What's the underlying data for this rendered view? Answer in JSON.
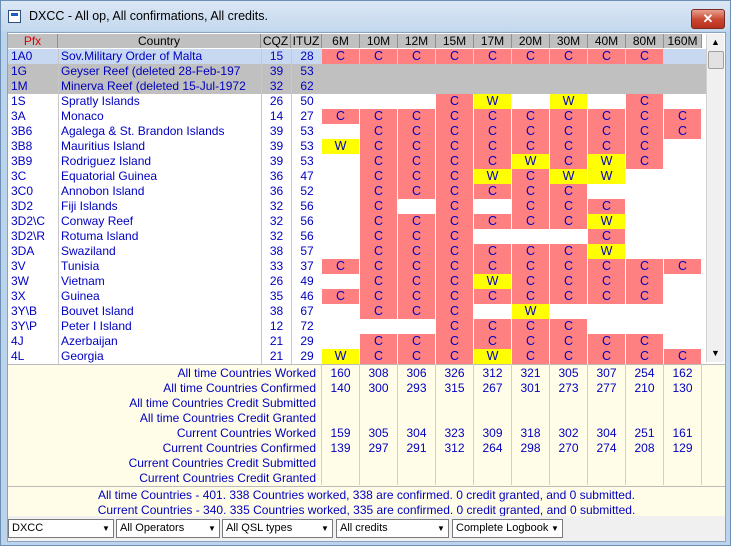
{
  "window": {
    "title": "DXCC - All op, All confirmations, All credits."
  },
  "columns": {
    "pfx": "Pfx",
    "country": "Country",
    "cqz": "CQZ",
    "ituz": "ITUZ",
    "bands": [
      "6M",
      "10M",
      "12M",
      "15M",
      "17M",
      "20M",
      "30M",
      "40M",
      "80M",
      "160M"
    ]
  },
  "colors": {
    "C": "#ff8080",
    "W": "#ffff00",
    "deleted_row": "#c0c0c0",
    "selected_row": "#c8d8f0",
    "text": "#0000c0"
  },
  "rows": [
    {
      "pfx": "1A0",
      "country": "Sov.Military Order of Malta",
      "cqz": "15",
      "ituz": "28",
      "bands": [
        "C",
        "C",
        "C",
        "C",
        "C",
        "C",
        "C",
        "C",
        "C",
        ""
      ],
      "style": "sel"
    },
    {
      "pfx": "1G",
      "country": "Geyser Reef  (deleted 28-Feb-197",
      "cqz": "39",
      "ituz": "53",
      "bands": [
        "",
        "",
        "",
        "",
        "",
        "",
        "",
        "",
        "",
        ""
      ],
      "style": "del"
    },
    {
      "pfx": "1M",
      "country": "Minerva Reef  (deleted 15-Jul-1972",
      "cqz": "32",
      "ituz": "62",
      "bands": [
        "",
        "",
        "",
        "",
        "",
        "",
        "",
        "",
        "",
        ""
      ],
      "style": "del"
    },
    {
      "pfx": "1S",
      "country": "Spratly Islands",
      "cqz": "26",
      "ituz": "50",
      "bands": [
        "",
        "",
        "",
        "C",
        "W",
        "",
        "W",
        "",
        "C",
        ""
      ]
    },
    {
      "pfx": "3A",
      "country": "Monaco",
      "cqz": "14",
      "ituz": "27",
      "bands": [
        "C",
        "C",
        "C",
        "C",
        "C",
        "C",
        "C",
        "C",
        "C",
        "C"
      ]
    },
    {
      "pfx": "3B6",
      "country": "Agalega & St. Brandon Islands",
      "cqz": "39",
      "ituz": "53",
      "bands": [
        "",
        "C",
        "C",
        "C",
        "C",
        "C",
        "C",
        "C",
        "C",
        "C"
      ]
    },
    {
      "pfx": "3B8",
      "country": "Mauritius Island",
      "cqz": "39",
      "ituz": "53",
      "bands": [
        "W",
        "C",
        "C",
        "C",
        "C",
        "C",
        "C",
        "C",
        "C",
        ""
      ]
    },
    {
      "pfx": "3B9",
      "country": "Rodriguez Island",
      "cqz": "39",
      "ituz": "53",
      "bands": [
        "",
        "C",
        "C",
        "C",
        "C",
        "W",
        "C",
        "W",
        "C",
        ""
      ]
    },
    {
      "pfx": "3C",
      "country": "Equatorial Guinea",
      "cqz": "36",
      "ituz": "47",
      "bands": [
        "",
        "C",
        "C",
        "C",
        "W",
        "C",
        "W",
        "W",
        "",
        ""
      ]
    },
    {
      "pfx": "3C0",
      "country": "Annobon Island",
      "cqz": "36",
      "ituz": "52",
      "bands": [
        "",
        "C",
        "C",
        "C",
        "C",
        "C",
        "C",
        "",
        "",
        ""
      ]
    },
    {
      "pfx": "3D2",
      "country": "Fiji Islands",
      "cqz": "32",
      "ituz": "56",
      "bands": [
        "",
        "C",
        "",
        "C",
        "",
        "C",
        "C",
        "C",
        "",
        ""
      ]
    },
    {
      "pfx": "3D2\\C",
      "country": "Conway Reef",
      "cqz": "32",
      "ituz": "56",
      "bands": [
        "",
        "C",
        "C",
        "C",
        "C",
        "C",
        "C",
        "W",
        "",
        ""
      ]
    },
    {
      "pfx": "3D2\\R",
      "country": "Rotuma Island",
      "cqz": "32",
      "ituz": "56",
      "bands": [
        "",
        "C",
        "C",
        "C",
        "",
        "",
        "",
        "C",
        "",
        ""
      ]
    },
    {
      "pfx": "3DA",
      "country": "Swaziland",
      "cqz": "38",
      "ituz": "57",
      "bands": [
        "",
        "C",
        "C",
        "C",
        "C",
        "C",
        "C",
        "W",
        "",
        ""
      ]
    },
    {
      "pfx": "3V",
      "country": "Tunisia",
      "cqz": "33",
      "ituz": "37",
      "bands": [
        "C",
        "C",
        "C",
        "C",
        "C",
        "C",
        "C",
        "C",
        "C",
        "C"
      ]
    },
    {
      "pfx": "3W",
      "country": "Vietnam",
      "cqz": "26",
      "ituz": "49",
      "bands": [
        "",
        "C",
        "C",
        "C",
        "W",
        "C",
        "C",
        "C",
        "C",
        ""
      ]
    },
    {
      "pfx": "3X",
      "country": "Guinea",
      "cqz": "35",
      "ituz": "46",
      "bands": [
        "C",
        "C",
        "C",
        "C",
        "C",
        "C",
        "C",
        "C",
        "C",
        ""
      ]
    },
    {
      "pfx": "3Y\\B",
      "country": "Bouvet Island",
      "cqz": "38",
      "ituz": "67",
      "bands": [
        "",
        "C",
        "C",
        "C",
        "",
        "W",
        "",
        "",
        "",
        ""
      ]
    },
    {
      "pfx": "3Y\\P",
      "country": "Peter I Island",
      "cqz": "12",
      "ituz": "72",
      "bands": [
        "",
        "",
        "",
        "C",
        "C",
        "C",
        "C",
        "",
        "",
        ""
      ]
    },
    {
      "pfx": "4J",
      "country": "Azerbaijan",
      "cqz": "21",
      "ituz": "29",
      "bands": [
        "",
        "C",
        "C",
        "C",
        "C",
        "C",
        "C",
        "C",
        "C",
        ""
      ]
    },
    {
      "pfx": "4L",
      "country": "Georgia",
      "cqz": "21",
      "ituz": "29",
      "bands": [
        "W",
        "C",
        "C",
        "C",
        "W",
        "C",
        "C",
        "C",
        "C",
        "C"
      ]
    }
  ],
  "stats": [
    {
      "label": "All time Countries Worked",
      "values": [
        "160",
        "308",
        "306",
        "326",
        "312",
        "321",
        "305",
        "307",
        "254",
        "162"
      ]
    },
    {
      "label": "All time Countries Confirmed",
      "values": [
        "140",
        "300",
        "293",
        "315",
        "267",
        "301",
        "273",
        "277",
        "210",
        "130"
      ]
    },
    {
      "label": "All time Countries Credit Submitted",
      "values": [
        "",
        "",
        "",
        "",
        "",
        "",
        "",
        "",
        "",
        ""
      ]
    },
    {
      "label": "All time Countries Credit Granted",
      "values": [
        "",
        "",
        "",
        "",
        "",
        "",
        "",
        "",
        "",
        ""
      ]
    },
    {
      "label": "Current Countries Worked",
      "values": [
        "159",
        "305",
        "304",
        "323",
        "309",
        "318",
        "302",
        "304",
        "251",
        "161"
      ]
    },
    {
      "label": "Current Countries Confirmed",
      "values": [
        "139",
        "297",
        "291",
        "312",
        "264",
        "298",
        "270",
        "274",
        "208",
        "129"
      ]
    },
    {
      "label": "Current Countries Credit Submitted",
      "values": [
        "",
        "",
        "",
        "",
        "",
        "",
        "",
        "",
        "",
        ""
      ]
    },
    {
      "label": "Current Countries Credit Granted",
      "values": [
        "",
        "",
        "",
        "",
        "",
        "",
        "",
        "",
        "",
        ""
      ]
    }
  ],
  "summary": {
    "all_time": "All time Countries - 401.  338 Countries worked, 338 are confirmed.  0 credit granted, and 0 submitted.",
    "current": "Current Countries - 340.  335 Countries worked, 335 are confirmed.  0 credit granted, and 0 submitted."
  },
  "filters": {
    "award": "DXCC",
    "operators": "All Operators",
    "qsl": "All QSL types",
    "credits": "All credits",
    "logbook": "Complete Logbook"
  }
}
